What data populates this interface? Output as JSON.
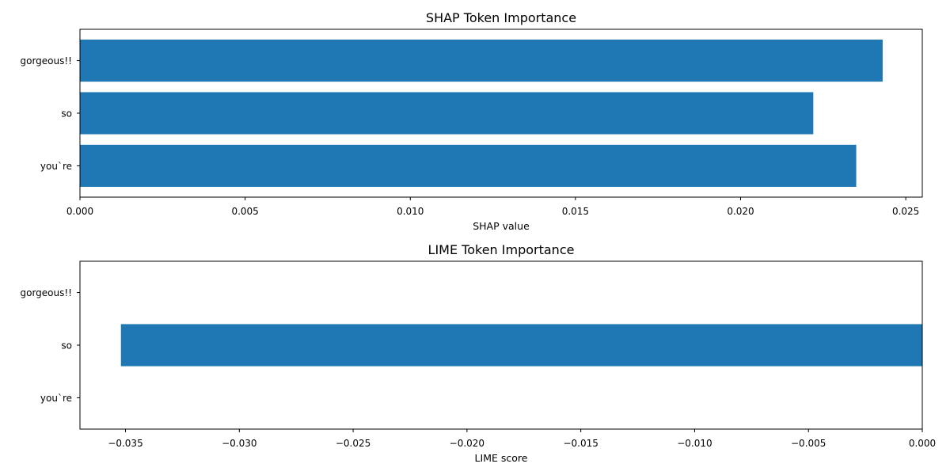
{
  "chart_data": [
    {
      "type": "bar",
      "orientation": "horizontal",
      "title": "SHAP Token Importance",
      "xlabel": "SHAP value",
      "ylabel": "",
      "categories": [
        "gorgeous!!",
        "so",
        "you`re"
      ],
      "values": [
        0.0243,
        0.0222,
        0.0235
      ],
      "xlim": [
        0,
        0.0255
      ],
      "xticks": [
        0.0,
        0.005,
        0.01,
        0.015,
        0.02,
        0.025
      ],
      "xtick_labels": [
        "0.000",
        "0.005",
        "0.010",
        "0.015",
        "0.020",
        "0.025"
      ],
      "bar_color": "#1f77b4",
      "grid": false,
      "legend": "none"
    },
    {
      "type": "bar",
      "orientation": "horizontal",
      "title": "LIME Token Importance",
      "xlabel": "LIME score",
      "ylabel": "",
      "categories": [
        "gorgeous!!",
        "so",
        "you`re"
      ],
      "values": [
        0,
        -0.0352,
        0
      ],
      "xlim": [
        -0.037,
        0
      ],
      "xticks": [
        -0.035,
        -0.03,
        -0.025,
        -0.02,
        -0.015,
        -0.01,
        -0.005,
        0.0
      ],
      "xtick_labels": [
        "−0.035",
        "−0.030",
        "−0.025",
        "−0.020",
        "−0.015",
        "−0.010",
        "−0.005",
        "0.000"
      ],
      "bar_color": "#1f77b4",
      "grid": false,
      "legend": "none"
    }
  ]
}
